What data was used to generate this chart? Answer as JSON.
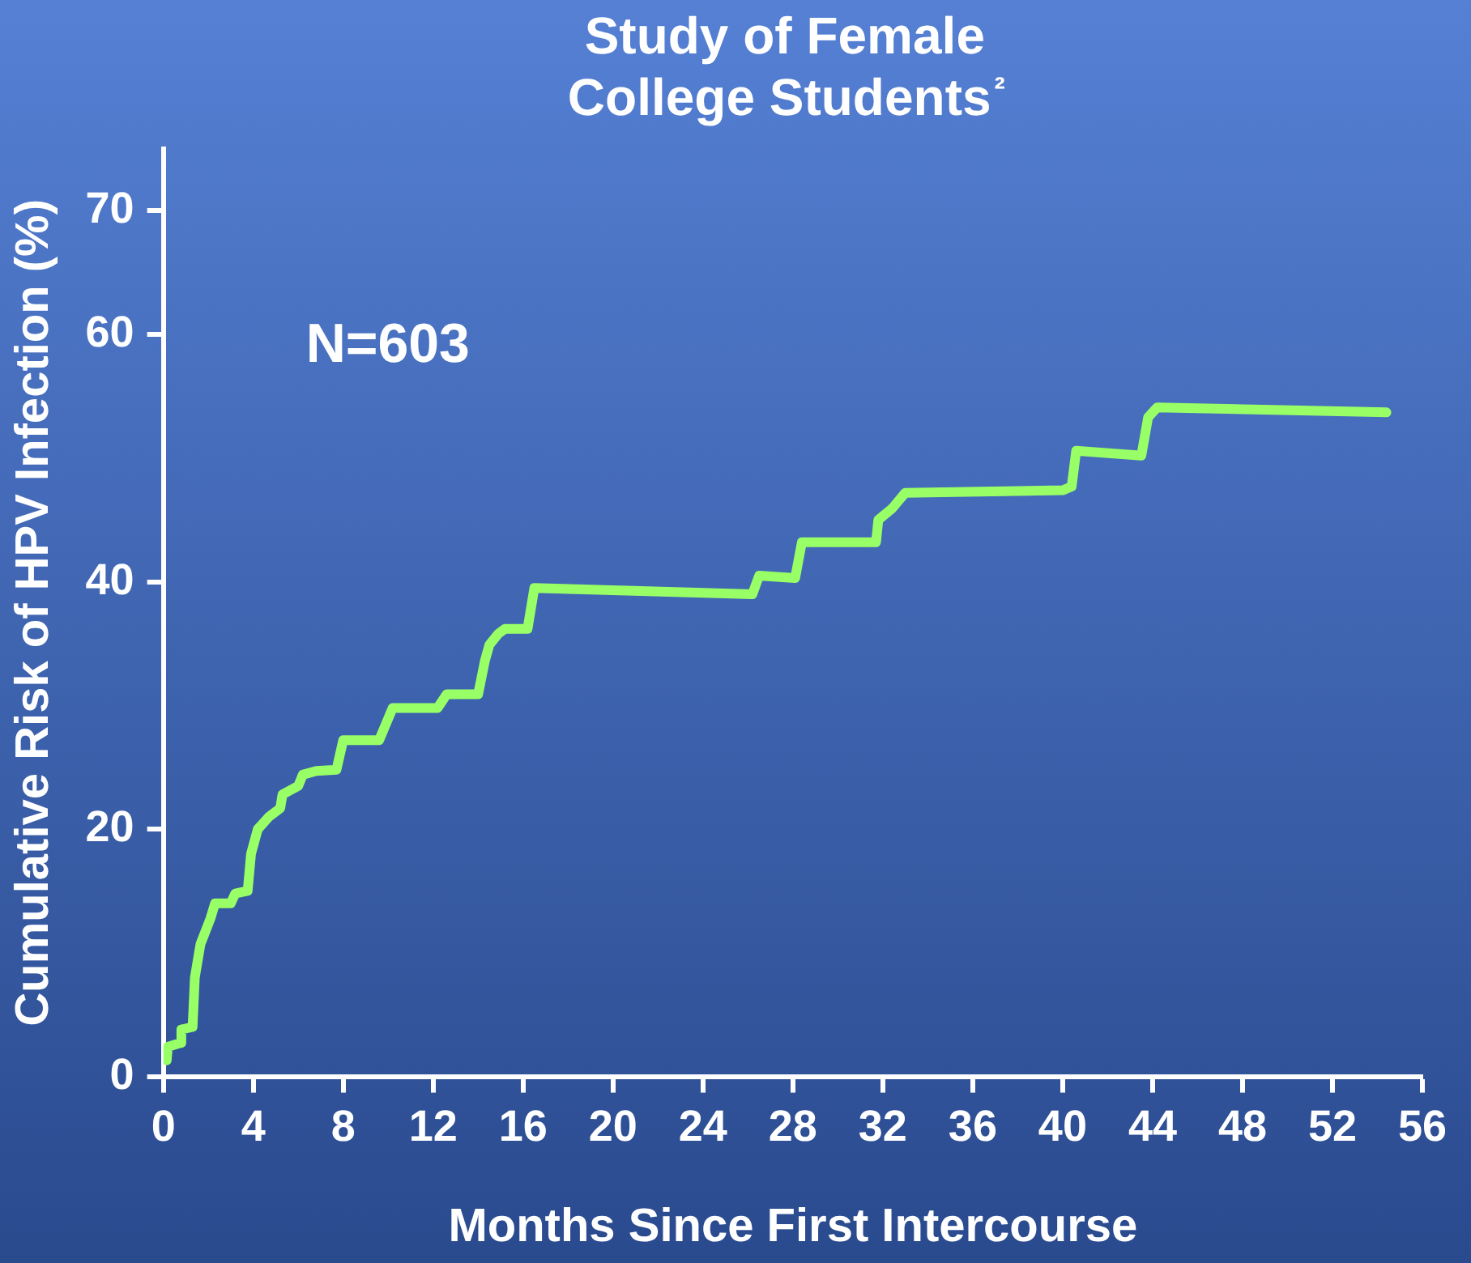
{
  "chart_data": {
    "type": "line",
    "title": "Study of Female College Students²",
    "xlabel": "Months Since First Intercourse",
    "ylabel": "Cumulative Risk of HPV Infection (%)",
    "annotations": [
      "N=603"
    ],
    "x": [
      0.15,
      0.2,
      0.75,
      0.8,
      1.3,
      1.4,
      1.65,
      2.1,
      2.3,
      3,
      3.2,
      3.75,
      3.9,
      4.2,
      4.7,
      5.2,
      5.3,
      6,
      6.2,
      6.8,
      7.7,
      8,
      9.6,
      10.2,
      12.2,
      12.6,
      14,
      14.3,
      14.5,
      14.9,
      15.2,
      16.2,
      16.5,
      20.3,
      26.2,
      26.5,
      28.1,
      28.4,
      31.7,
      31.8,
      32.4,
      33,
      40,
      40.4,
      40.6,
      43.5,
      43.8,
      44.2,
      54.4
    ],
    "series": [
      {
        "color": "#99ff66",
        "values": [
          1.3,
          2.4,
          2.7,
          3.8,
          4,
          8,
          10.7,
          12.8,
          14,
          14,
          14.8,
          15,
          18,
          20,
          21,
          21.7,
          22.8,
          23.5,
          24.4,
          24.7,
          24.8,
          27.2,
          27.2,
          29.8,
          29.8,
          30.9,
          30.9,
          33.6,
          34.9,
          35.8,
          36.2,
          36.2,
          39.5,
          39.3,
          39,
          40.5,
          40.3,
          43.2,
          43.2,
          45,
          45.9,
          47.2,
          47.4,
          47.7,
          50.6,
          50.2,
          53.3,
          54.1,
          53.7
        ]
      }
    ],
    "xlim": [
      0,
      56
    ],
    "xticks": [
      0,
      4,
      8,
      12,
      16,
      20,
      24,
      28,
      32,
      36,
      40,
      44,
      48,
      52,
      56
    ],
    "ylim": [
      0,
      75
    ],
    "yticks": [
      0,
      20,
      40,
      60,
      70
    ],
    "grid": false,
    "legend": false,
    "marker": "none",
    "line_style": "solid"
  }
}
